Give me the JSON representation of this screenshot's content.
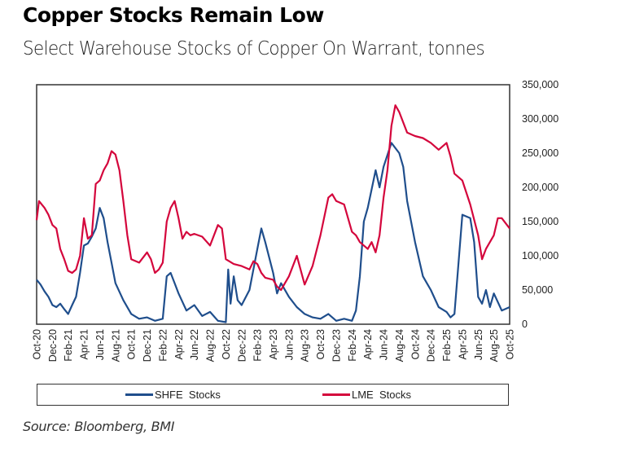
{
  "header": {
    "title": "Copper Stocks Remain Low",
    "subtitle": "Select Warehouse Stocks of Copper On Warrant, tonnes"
  },
  "source": "Source: Bloomberg, BMI",
  "chart_data": {
    "type": "line",
    "title": "Copper Stocks Remain Low",
    "subtitle": "Select Warehouse Stocks of Copper On Warrant, tonnes",
    "xlabel": "",
    "ylabel": "tonnes",
    "y_axis_side": "right",
    "ylim": [
      0,
      350000
    ],
    "y_ticks": [
      0,
      50000,
      100000,
      150000,
      200000,
      250000,
      300000,
      350000
    ],
    "y_tick_labels": [
      "0",
      "50,000",
      "100,000",
      "150,000",
      "200,000",
      "250,000",
      "300,000",
      "350,000"
    ],
    "x_range_months": [
      0,
      60
    ],
    "x_ticks": [
      0,
      2,
      4,
      6,
      8,
      10,
      12,
      14,
      16,
      18,
      20,
      22,
      24,
      26,
      28,
      30,
      32,
      34,
      36,
      38,
      40,
      42,
      44,
      46,
      48,
      50,
      52,
      54,
      56,
      58,
      60
    ],
    "x_tick_labels": [
      "Oct-20",
      "Dec-20",
      "Feb-21",
      "Apr-21",
      "Jun-21",
      "Aug-21",
      "Oct-21",
      "Dec-21",
      "Feb-22",
      "Apr-22",
      "Jun-22",
      "Aug-22",
      "Oct-22",
      "Dec-22",
      "Feb-23",
      "Apr-23",
      "Jun-23",
      "Aug-23",
      "Oct-23",
      "Dec-23",
      "Feb-24",
      "Apr-24",
      "Jun-24",
      "Aug-24",
      "Oct-24",
      "Dec-24",
      "Feb-25",
      "Apr-25",
      "Jun-25",
      "Aug-25",
      "Oct-25"
    ],
    "grid": false,
    "legend": "bottom",
    "x_note": "x values are months since Oct-20",
    "series": [
      {
        "name": "SHFE  Stocks",
        "color": "#1f4e8c",
        "x": [
          0,
          0.5,
          1,
          1.5,
          2,
          2.5,
          3,
          3.5,
          4,
          4.5,
          5,
          5.5,
          6,
          6.5,
          7,
          7.5,
          8,
          8.5,
          9,
          9.5,
          10,
          11,
          12,
          13,
          14,
          15,
          16,
          16.5,
          17,
          17.5,
          18,
          19,
          20,
          21,
          22,
          23,
          24,
          24.3,
          24.6,
          25,
          25.5,
          26,
          27,
          28,
          28.5,
          29,
          30,
          30.5,
          31,
          32,
          33,
          34,
          35,
          36,
          37,
          38,
          39,
          40,
          40.5,
          41,
          41.5,
          42,
          43,
          43.5,
          44,
          45,
          46,
          46.5,
          47,
          48,
          49,
          49.5,
          50,
          51,
          52,
          52.5,
          53,
          54,
          55,
          55.5,
          56,
          56.5,
          57,
          57.5,
          58,
          59,
          60
        ],
        "values": [
          65000,
          58000,
          48000,
          40000,
          28000,
          25000,
          30000,
          22000,
          15000,
          28000,
          40000,
          75000,
          115000,
          118000,
          128000,
          140000,
          170000,
          155000,
          120000,
          90000,
          60000,
          35000,
          15000,
          8000,
          10000,
          5000,
          8000,
          70000,
          75000,
          60000,
          45000,
          20000,
          28000,
          12000,
          18000,
          5000,
          3000,
          80000,
          30000,
          70000,
          35000,
          28000,
          50000,
          110000,
          140000,
          120000,
          75000,
          45000,
          60000,
          40000,
          25000,
          15000,
          10000,
          8000,
          15000,
          5000,
          8000,
          5000,
          20000,
          70000,
          150000,
          170000,
          225000,
          200000,
          230000,
          265000,
          250000,
          230000,
          180000,
          120000,
          70000,
          60000,
          50000,
          25000,
          18000,
          10000,
          15000,
          160000,
          155000,
          120000,
          40000,
          30000,
          50000,
          25000,
          45000,
          20000,
          25000
        ]
      },
      {
        "name": "LME  Stocks",
        "color": "#d4063c",
        "x": [
          0,
          0.3,
          1,
          1.5,
          2,
          2.5,
          3,
          3.5,
          4,
          4.5,
          5,
          5.5,
          6,
          6.5,
          7,
          7.5,
          8,
          8.5,
          9,
          9.5,
          10,
          10.5,
          11,
          11.5,
          12,
          13,
          14,
          14.5,
          15,
          15.5,
          16,
          16.5,
          17,
          17.5,
          18,
          18.5,
          19,
          19.5,
          20,
          21,
          22,
          23,
          23.5,
          24,
          25,
          26,
          27,
          27.5,
          28,
          28.5,
          29,
          30,
          30.5,
          31,
          31.5,
          32,
          33,
          34,
          35,
          36,
          37,
          37.5,
          38,
          39,
          40,
          40.5,
          41,
          42,
          42.5,
          43,
          43.5,
          44,
          44.5,
          45,
          45.5,
          46,
          47,
          48,
          49,
          50,
          51,
          52,
          52.5,
          53,
          54,
          55,
          56,
          56.5,
          57,
          58,
          58.5,
          59,
          60
        ],
        "values": [
          152000,
          180000,
          170000,
          160000,
          145000,
          140000,
          110000,
          95000,
          78000,
          75000,
          80000,
          100000,
          155000,
          125000,
          130000,
          205000,
          210000,
          225000,
          235000,
          253000,
          248000,
          225000,
          180000,
          130000,
          95000,
          90000,
          105000,
          95000,
          75000,
          80000,
          90000,
          150000,
          170000,
          180000,
          155000,
          125000,
          135000,
          130000,
          132000,
          128000,
          115000,
          145000,
          140000,
          95000,
          88000,
          85000,
          80000,
          92000,
          88000,
          75000,
          68000,
          65000,
          55000,
          50000,
          60000,
          70000,
          100000,
          58000,
          85000,
          130000,
          185000,
          190000,
          180000,
          175000,
          135000,
          130000,
          120000,
          110000,
          120000,
          105000,
          130000,
          185000,
          225000,
          290000,
          320000,
          310000,
          280000,
          275000,
          272000,
          265000,
          255000,
          265000,
          245000,
          220000,
          210000,
          175000,
          130000,
          95000,
          110000,
          130000,
          155000,
          155000,
          140000
        ]
      }
    ]
  },
  "legend": {
    "items": [
      {
        "label": "SHFE  Stocks",
        "color": "#1f4e8c"
      },
      {
        "label": "LME  Stocks",
        "color": "#d4063c"
      }
    ]
  }
}
